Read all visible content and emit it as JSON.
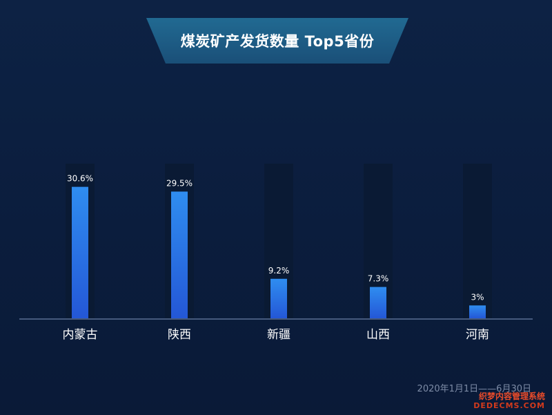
{
  "chart_data": {
    "type": "bar",
    "title": "煤炭矿产发货数量 Top5省份",
    "categories": [
      "内蒙古",
      "陕西",
      "新疆",
      "山西",
      "河南"
    ],
    "values": [
      30.6,
      29.5,
      9.2,
      7.3,
      3
    ],
    "data_labels": [
      "30.6%",
      "29.5%",
      "9.2%",
      "7.3%",
      "3%"
    ],
    "ylim": [
      0,
      36
    ],
    "grid": false,
    "legend": "none",
    "date_range": "2020年1月1日——6月30日",
    "colors": {
      "bar_top": "#2f8df0",
      "bar_bottom": "#2457d6",
      "bar_track": "#0b1a33",
      "axis": "#5a6f93",
      "banner_fill": "#1e5f86"
    }
  },
  "watermark": {
    "line1": "织梦内容管理系统",
    "line2": "DEDECMS.COM"
  }
}
